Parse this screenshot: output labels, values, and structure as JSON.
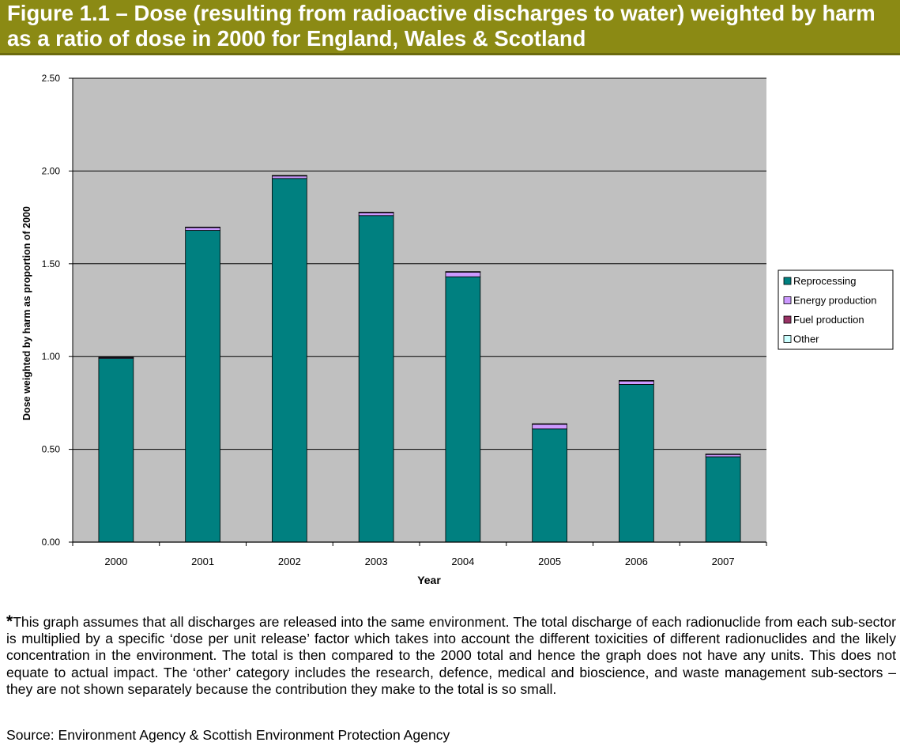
{
  "title": "Figure 1.1 – Dose (resulting from radioactive discharges to water) weighted by harm as a ratio of dose in 2000 for England, Wales & Scotland",
  "colors": {
    "title_bar": "#8b8a14",
    "plot_bg": "#c0c0c0",
    "reprocessing": "#008080",
    "energy_production": "#cc99ff",
    "fuel_production": "#993366",
    "other": "#ccffff"
  },
  "chart_data": {
    "type": "bar",
    "stacked": true,
    "categories": [
      "2000",
      "2001",
      "2002",
      "2003",
      "2004",
      "2005",
      "2006",
      "2007"
    ],
    "series": [
      {
        "name": "Reprocessing",
        "values": [
          0.99,
          1.68,
          1.96,
          1.76,
          1.43,
          0.61,
          0.85,
          0.46
        ]
      },
      {
        "name": "Energy production",
        "values": [
          0.005,
          0.015,
          0.013,
          0.015,
          0.025,
          0.025,
          0.018,
          0.012
        ]
      },
      {
        "name": "Fuel production",
        "values": [
          0.003,
          0.002,
          0.002,
          0.002,
          0.002,
          0.002,
          0.002,
          0.002
        ]
      },
      {
        "name": "Other",
        "values": [
          0.001,
          0.001,
          0.001,
          0.001,
          0.001,
          0.001,
          0.001,
          0.001
        ]
      }
    ],
    "y_ticks": [
      "0.00",
      "0.50",
      "1.00",
      "1.50",
      "2.00",
      "2.50"
    ],
    "ylim": [
      0,
      2.5
    ],
    "xlabel": "Year",
    "ylabel": "Dose weighted  by harm as proportion of 2000",
    "grid": true,
    "legend_position": "right"
  },
  "footnote": {
    "asterisk": "*",
    "text": "This graph assumes that all discharges are released into the same environment. The total discharge of each radionuclide from each sub-sector is multiplied by a specific ‘dose per unit release’ factor which takes into account the different toxicities of different radionuclides and the likely concentration in the environment. The total is then compared to the 2000 total and hence the graph does not have any units. This does not equate to actual impact. The ‘other’ category includes the research, defence, medical and bioscience, and waste management sub-sectors – they are not shown separately because the contribution they make to the total is so small."
  },
  "source": "Source: Environment Agency & Scottish Environment Protection Agency"
}
